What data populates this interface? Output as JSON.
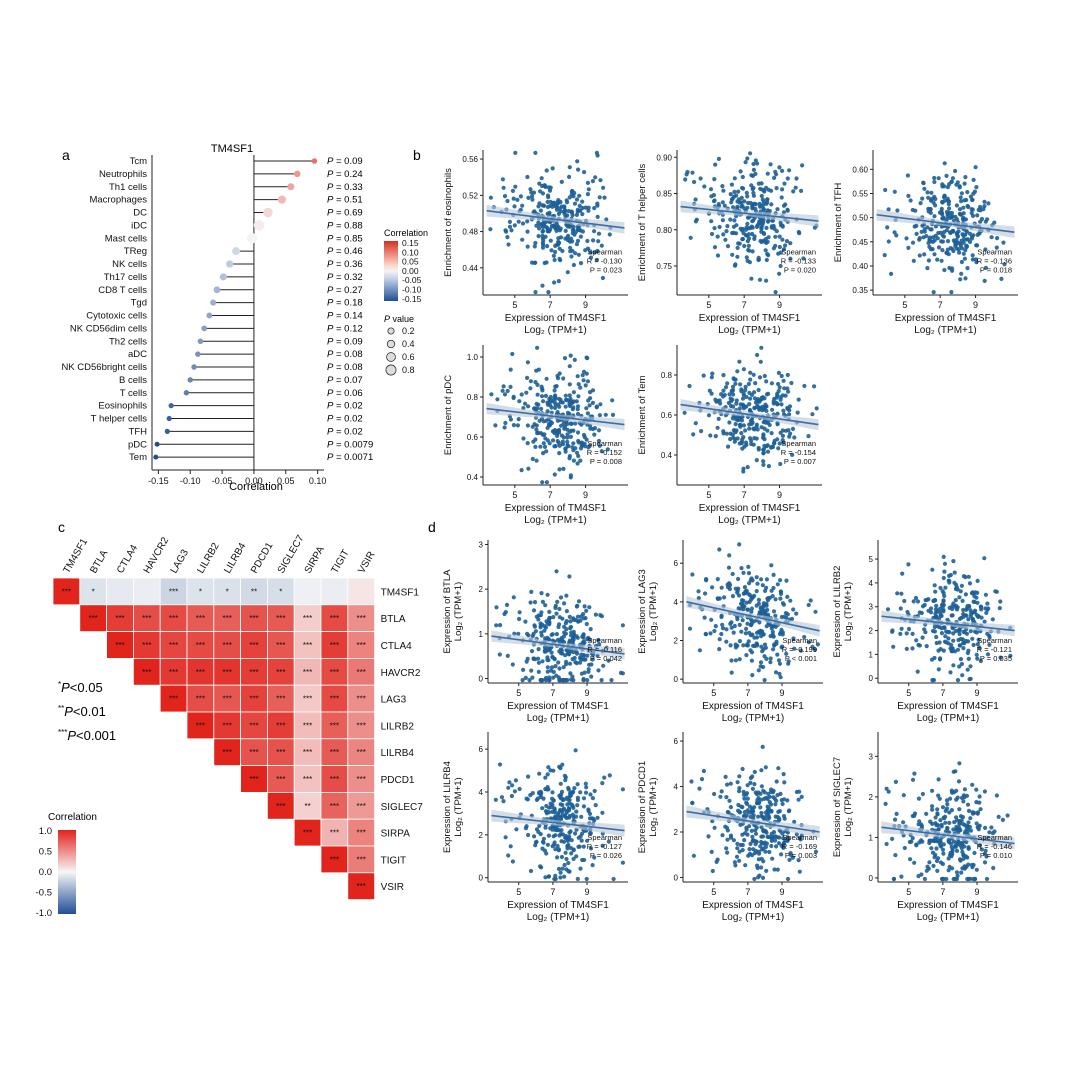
{
  "panels": {
    "a": "a",
    "b": "b",
    "c": "c",
    "d": "d"
  },
  "chart_data": [
    {
      "id": "a",
      "type": "lollipop",
      "title": "TM4SF1",
      "xlabel": "Correlation",
      "xlim": [
        -0.16,
        0.11
      ],
      "xticks": [
        -0.15,
        -0.1,
        -0.05,
        0.0,
        0.05,
        0.1
      ],
      "xtick_labels": [
        "-0.15",
        "-0.10",
        "-0.05",
        "0.00",
        "0.05",
        "0.10"
      ],
      "categories": [
        "Tcm",
        "Neutrophils",
        "Th1 cells",
        "Macrophages",
        "DC",
        "iDC",
        "Mast cells",
        "TReg",
        "NK cells",
        "Th17 cells",
        "CD8 T cells",
        "Tgd",
        "Cytotoxic cells",
        "NK CD56dim cells",
        "Th2 cells",
        "aDC",
        "NK CD56bright cells",
        "B cells",
        "T cells",
        "Eosinophils",
        "T helper cells",
        "TFH",
        "pDC",
        "Tem"
      ],
      "values": [
        0.095,
        0.068,
        0.058,
        0.044,
        0.022,
        0.008,
        -0.003,
        -0.028,
        -0.038,
        -0.048,
        -0.058,
        -0.064,
        -0.07,
        -0.078,
        -0.084,
        -0.088,
        -0.094,
        -0.1,
        -0.106,
        -0.13,
        -0.133,
        -0.136,
        -0.152,
        -0.154
      ],
      "p_values": [
        0.09,
        0.24,
        0.33,
        0.51,
        0.69,
        0.88,
        0.85,
        0.46,
        0.36,
        0.32,
        0.27,
        0.18,
        0.14,
        0.12,
        0.09,
        0.08,
        0.08,
        0.07,
        0.06,
        0.02,
        0.02,
        0.02,
        0.0079,
        0.0071
      ],
      "p_labels": [
        "P = 0.09",
        "P = 0.24",
        "P = 0.33",
        "P = 0.51",
        "P = 0.69",
        "P = 0.88",
        "P = 0.85",
        "P = 0.46",
        "P = 0.36",
        "P = 0.32",
        "P = 0.27",
        "P = 0.18",
        "P = 0.14",
        "P = 0.12",
        "P = 0.09",
        "P = 0.08",
        "P = 0.08",
        "P = 0.07",
        "P = 0.06",
        "P = 0.02",
        "P = 0.02",
        "P = 0.02",
        "P = 0.0079",
        "P = 0.0071"
      ],
      "color_legend": {
        "title": "Correlation",
        "labels": [
          "0.15",
          "0.10",
          "0.05",
          "0.00",
          "-0.05",
          "-0.10",
          "-0.15"
        ],
        "range": [
          -0.15,
          0.15
        ]
      },
      "size_legend": {
        "title": "P value",
        "labels": [
          "0.2",
          "0.4",
          "0.6",
          "0.8"
        ]
      }
    },
    {
      "id": "b",
      "type": "scatter-grid",
      "xlabel_line1": "Expression of  TM4SF1",
      "xlabel_line2": "Log₂ (TPM+1)",
      "xticks": [
        "5",
        "7",
        "9"
      ],
      "panels": [
        {
          "ylabel": "Enrichment of eosinophils",
          "yticks": [
            "0.56",
            "0.52",
            "0.48",
            "0.44"
          ],
          "yrange": [
            0.41,
            0.57
          ],
          "stat": [
            "Spearman",
            "R = -0.130",
            "P = 0.023"
          ],
          "trend": [
            0.503,
            0.484
          ]
        },
        {
          "ylabel": "Enrichment of T helper cells",
          "yticks": [
            "0.90",
            "0.85",
            "0.80",
            "0.75"
          ],
          "yrange": [
            0.71,
            0.91
          ],
          "stat": [
            "Spearman",
            "R = -0.133",
            "P = 0.020"
          ],
          "trend": [
            0.832,
            0.812
          ]
        },
        {
          "ylabel": "Enrichment of TFH",
          "yticks": [
            "0.60",
            "0.55",
            "0.50",
            "0.45",
            "0.40",
            "0.35"
          ],
          "yrange": [
            0.34,
            0.64
          ],
          "stat": [
            "Spearman",
            "R = -0.136",
            "P = 0.018"
          ],
          "trend": [
            0.506,
            0.47
          ]
        },
        {
          "ylabel": "Enrichment of pDC",
          "yticks": [
            "1.0",
            "0.8",
            "0.6",
            "0.4"
          ],
          "yrange": [
            0.36,
            1.06
          ],
          "stat": [
            "Spearman",
            "R = -0.152",
            "P = 0.008"
          ],
          "trend": [
            0.742,
            0.662
          ]
        },
        {
          "ylabel": "Enrichment of Tem",
          "yticks": [
            "0.8",
            "0.6",
            "0.4"
          ],
          "yrange": [
            0.25,
            0.95
          ],
          "stat": [
            "Spearman",
            "R = -0.154",
            "P = 0.007"
          ],
          "trend": [
            0.652,
            0.552
          ]
        }
      ]
    },
    {
      "id": "c",
      "type": "heatmap",
      "genes": [
        "TM4SF1",
        "BTLA",
        "CTLA4",
        "HAVCR2",
        "LAG3",
        "LILRB2",
        "LILRB4",
        "PDCD1",
        "SIGLEC7",
        "SIRPA",
        "TIGIT",
        "VSIR"
      ],
      "tm4sf1_corr": [
        1.0,
        -0.12,
        -0.08,
        -0.06,
        -0.2,
        -0.12,
        -0.13,
        -0.17,
        -0.15,
        -0.04,
        -0.06,
        0.08
      ],
      "tm4sf1_stars": [
        "***",
        "*",
        "",
        "",
        "***",
        "*",
        "*",
        "**",
        "*",
        "",
        "",
        ""
      ],
      "gene_corr_matrix": [
        [
          0.88,
          0.8,
          0.82,
          0.74,
          0.72,
          0.78,
          0.75,
          0.2,
          0.82,
          0.5
        ],
        [
          0.9,
          0.84,
          0.82,
          0.8,
          0.86,
          0.76,
          0.25,
          0.88,
          0.55
        ],
        [
          0.9,
          0.92,
          0.92,
          0.88,
          0.86,
          0.3,
          0.82,
          0.6
        ],
        [
          0.8,
          0.76,
          0.86,
          0.72,
          0.22,
          0.82,
          0.5
        ],
        [
          0.9,
          0.84,
          0.88,
          0.28,
          0.72,
          0.5
        ],
        [
          0.78,
          0.78,
          0.28,
          0.74,
          0.54
        ],
        [
          0.75,
          0.25,
          0.8,
          0.5
        ],
        [
          0.18,
          0.7,
          0.44
        ],
        [
          0.32,
          0.55
        ],
        [
          0.58
        ]
      ],
      "pair_stars_default": "***",
      "pair_stars_exceptions": [
        [
          8,
          9,
          "**"
        ]
      ],
      "legend": {
        "title": "Correlation",
        "labels": [
          "1.0",
          "0.5",
          "0.0",
          "-0.5",
          "-1.0"
        ],
        "range": [
          -1,
          1
        ]
      },
      "sig_legend": [
        {
          "sup": "*",
          "text": "P<0.05"
        },
        {
          "sup": "**",
          "text": "P<0.01"
        },
        {
          "sup": "***",
          "text": "P<0.001"
        }
      ]
    },
    {
      "id": "d",
      "type": "scatter-grid",
      "xlabel_line1": "Expression of  TM4SF1",
      "xlabel_line2": "Log₂ (TPM+1)",
      "xticks": [
        "5",
        "7",
        "9"
      ],
      "panels": [
        {
          "ylabel": "Expression of BTLA",
          "ylabel2": "Log₂ (TPM+1)",
          "yticks": [
            "3",
            "2",
            "1",
            "0"
          ],
          "yrange": [
            -0.1,
            3.1
          ],
          "stat": [
            "Spearman",
            "R = -0.116",
            "P = 0.042"
          ],
          "trend": [
            0.95,
            0.55
          ]
        },
        {
          "ylabel": "Expression of LAG3",
          "ylabel2": "Log₂ (TPM+1)",
          "yticks": [
            "6",
            "4",
            "2",
            "0"
          ],
          "yrange": [
            -0.2,
            7.2
          ],
          "stat": [
            "Spearman",
            "R = -0.199",
            "P < 0.001"
          ],
          "trend": [
            4.0,
            2.5
          ]
        },
        {
          "ylabel": "Expression of LILRB2",
          "ylabel2": "Log₂ (TPM+1)",
          "yticks": [
            "5",
            "4",
            "3",
            "2",
            "1",
            "0"
          ],
          "yrange": [
            -0.2,
            5.8
          ],
          "stat": [
            "Spearman",
            "R = -0.121",
            "P = 0.035"
          ],
          "trend": [
            2.6,
            2.0
          ]
        },
        {
          "ylabel": "Expression of LILRB4",
          "ylabel2": "Log₂ (TPM+1)",
          "yticks": [
            "6",
            "4",
            "2",
            "0"
          ],
          "yrange": [
            -0.2,
            6.8
          ],
          "stat": [
            "Spearman",
            "R = -0.127",
            "P = 0.026"
          ],
          "trend": [
            2.9,
            2.2
          ]
        },
        {
          "ylabel": "Expression of PDCD1",
          "ylabel2": "Log₂ (TPM+1)",
          "yticks": [
            "6",
            "4",
            "2",
            "0"
          ],
          "yrange": [
            -0.2,
            6.4
          ],
          "stat": [
            "Spearman",
            "R = -0.169",
            "P = 0.003"
          ],
          "trend": [
            2.9,
            2.0
          ]
        },
        {
          "ylabel": "Expression of SIGLEC7",
          "ylabel2": "Log₂ (TPM+1)",
          "yticks": [
            "3",
            "2",
            "1",
            "0"
          ],
          "yrange": [
            -0.1,
            3.6
          ],
          "stat": [
            "Spearman",
            "R = -0.146",
            "P = 0.010"
          ],
          "trend": [
            1.25,
            0.85
          ]
        }
      ]
    }
  ]
}
